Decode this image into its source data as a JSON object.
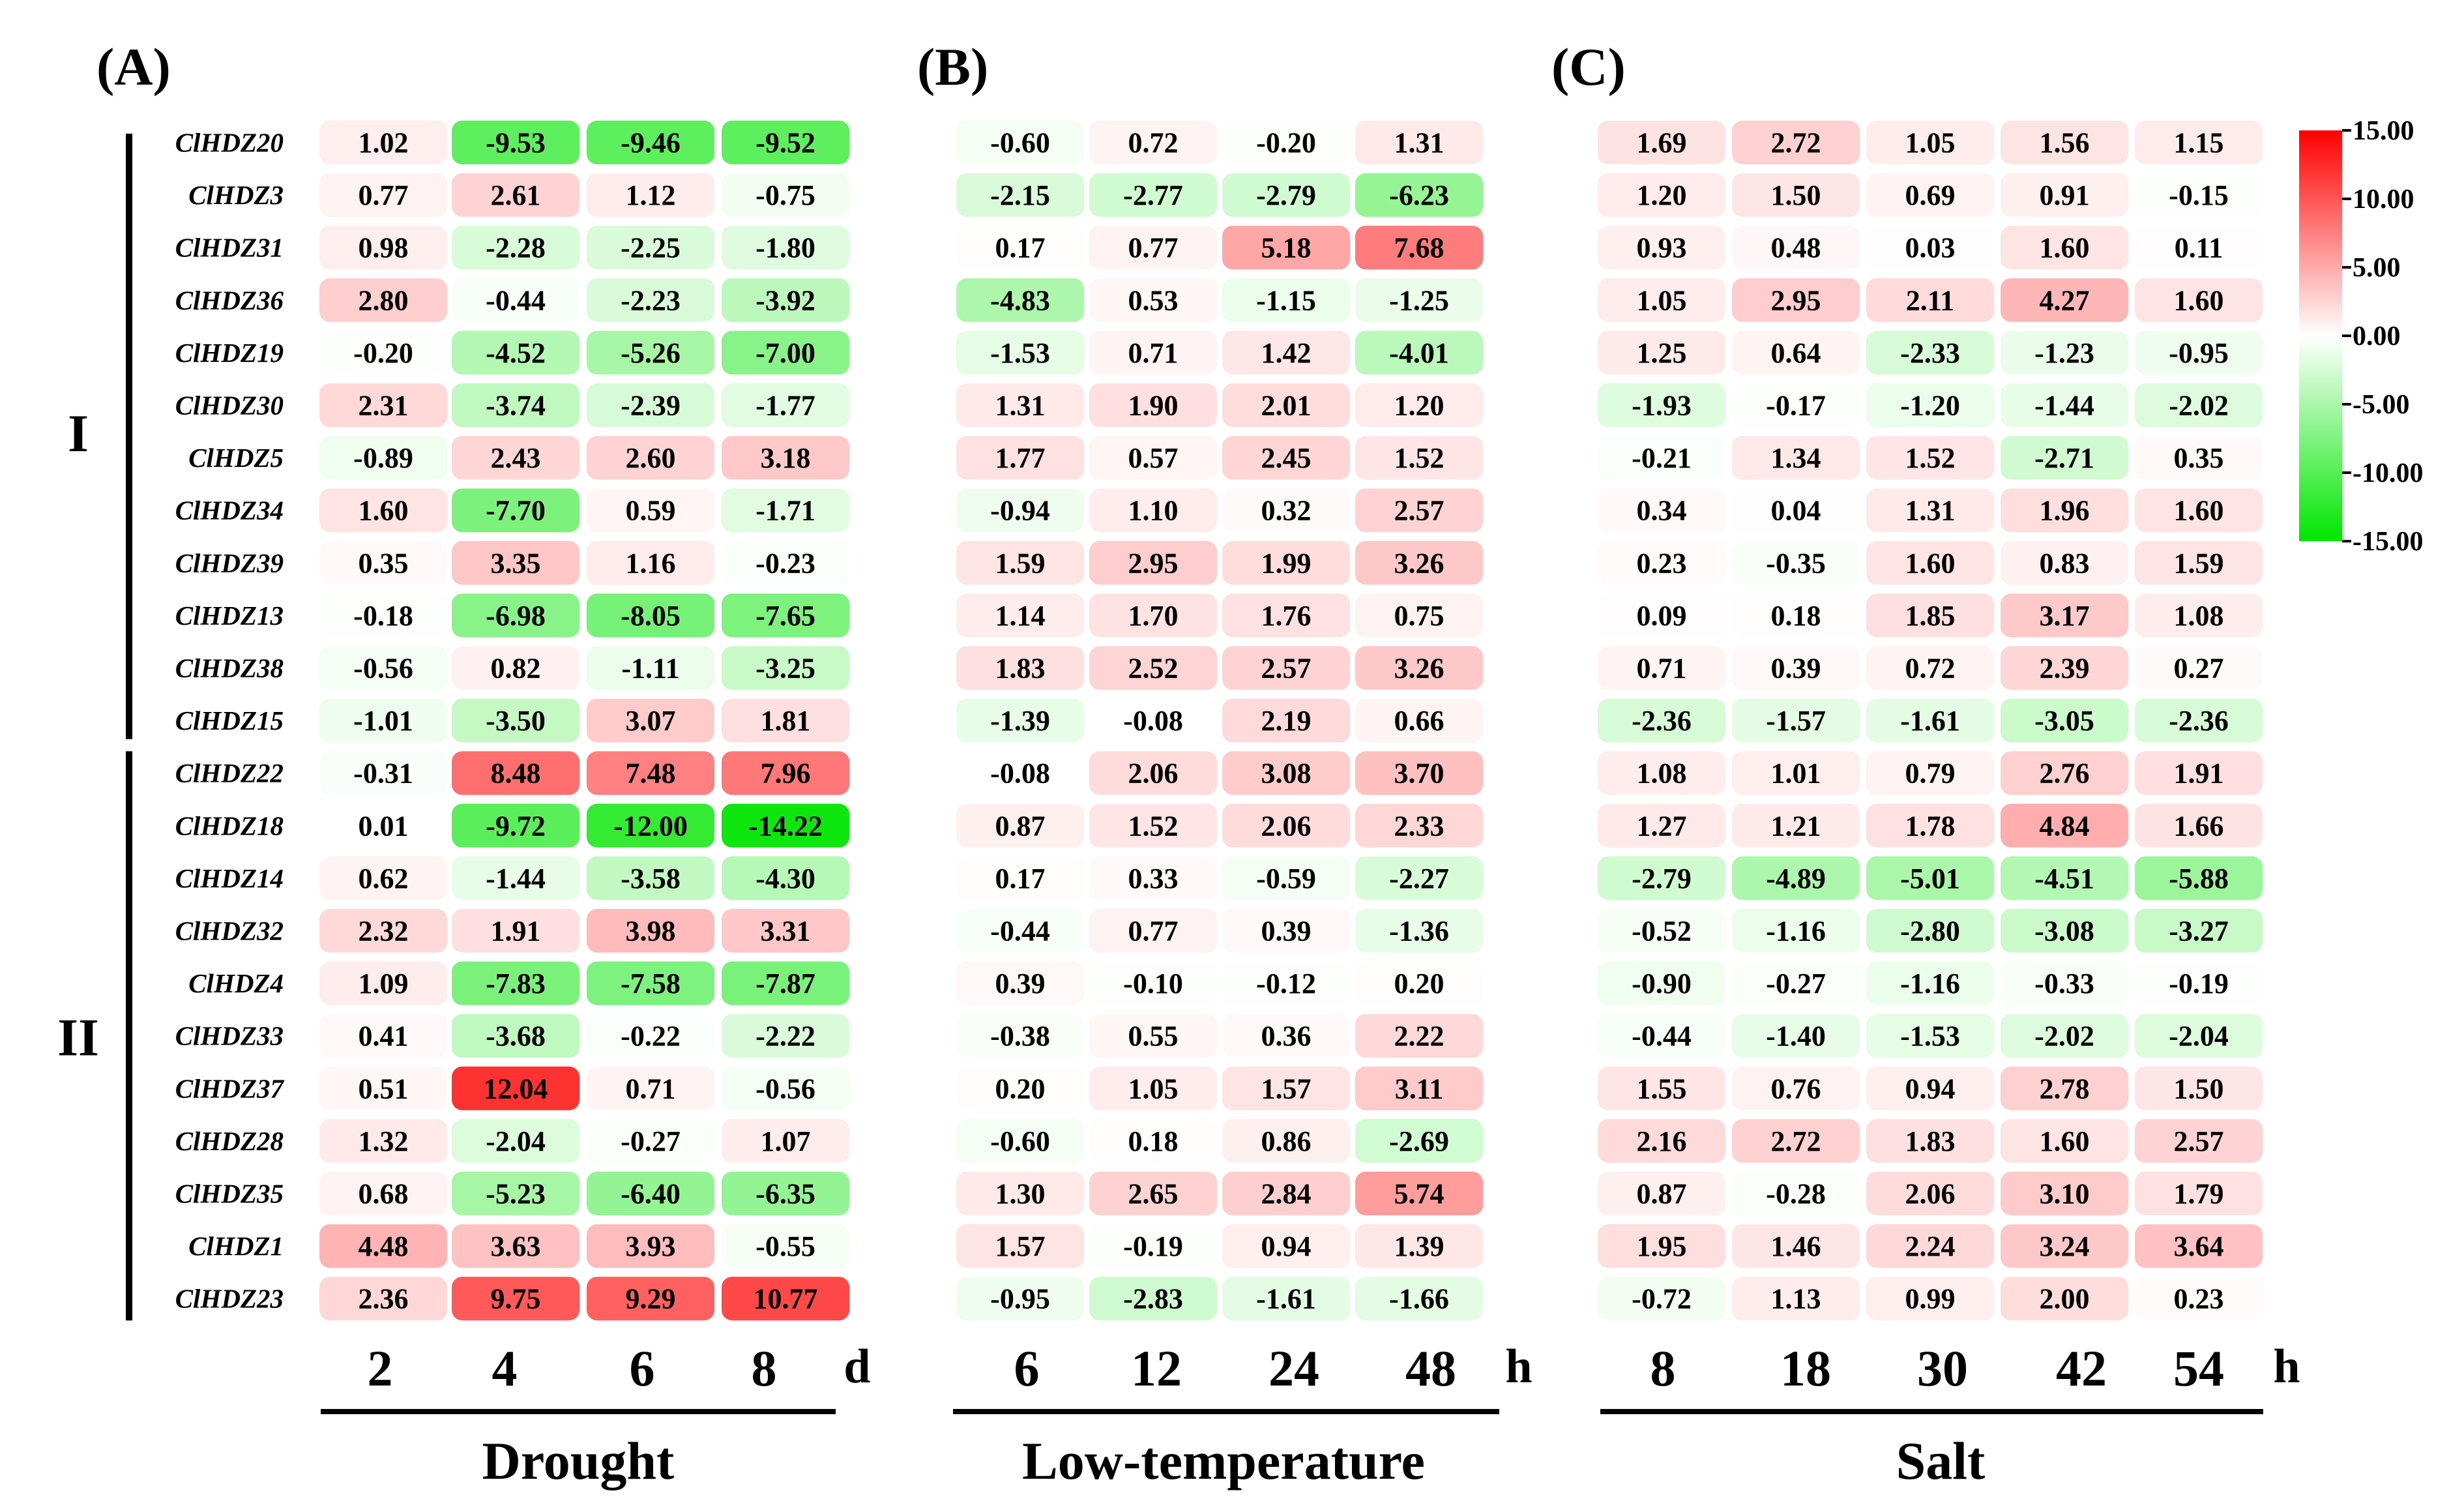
{
  "chart_data": {
    "type": "heatmap",
    "genes": [
      "ClHDZ20",
      "ClHDZ3",
      "ClHDZ31",
      "ClHDZ36",
      "ClHDZ19",
      "ClHDZ30",
      "ClHDZ5",
      "ClHDZ34",
      "ClHDZ39",
      "ClHDZ13",
      "ClHDZ38",
      "ClHDZ15",
      "ClHDZ22",
      "ClHDZ18",
      "ClHDZ14",
      "ClHDZ32",
      "ClHDZ4",
      "ClHDZ33",
      "ClHDZ37",
      "ClHDZ28",
      "ClHDZ35",
      "ClHDZ1",
      "ClHDZ23"
    ],
    "groups": [
      {
        "label": "I",
        "genes": [
          "ClHDZ20",
          "ClHDZ3",
          "ClHDZ31",
          "ClHDZ36",
          "ClHDZ19",
          "ClHDZ30",
          "ClHDZ5",
          "ClHDZ34",
          "ClHDZ39",
          "ClHDZ13",
          "ClHDZ38",
          "ClHDZ15"
        ]
      },
      {
        "label": "II",
        "genes": [
          "ClHDZ22",
          "ClHDZ18",
          "ClHDZ14",
          "ClHDZ32",
          "ClHDZ4",
          "ClHDZ33",
          "ClHDZ37",
          "ClHDZ28",
          "ClHDZ35",
          "ClHDZ1",
          "ClHDZ23"
        ]
      }
    ],
    "panels": [
      {
        "label": "(A)",
        "stress": "Drought",
        "unit": "d",
        "times": [
          "2",
          "4",
          "6",
          "8"
        ],
        "values": [
          [
            1.02,
            -9.53,
            -9.46,
            -9.52
          ],
          [
            0.77,
            2.61,
            1.12,
            -0.75
          ],
          [
            0.98,
            -2.28,
            -2.25,
            -1.8
          ],
          [
            2.8,
            -0.44,
            -2.23,
            -3.92
          ],
          [
            -0.2,
            -4.52,
            -5.26,
            -7.0
          ],
          [
            2.31,
            -3.74,
            -2.39,
            -1.77
          ],
          [
            -0.89,
            2.43,
            2.6,
            3.18
          ],
          [
            1.6,
            -7.7,
            0.59,
            -1.71
          ],
          [
            0.35,
            3.35,
            1.16,
            -0.23
          ],
          [
            -0.18,
            -6.98,
            -8.05,
            -7.65
          ],
          [
            -0.56,
            0.82,
            -1.11,
            -3.25
          ],
          [
            -1.01,
            -3.5,
            3.07,
            1.81
          ],
          [
            -0.31,
            8.48,
            7.48,
            7.96
          ],
          [
            0.01,
            -9.72,
            -12.0,
            -14.22
          ],
          [
            0.62,
            -1.44,
            -3.58,
            -4.3
          ],
          [
            2.32,
            1.91,
            3.98,
            3.31
          ],
          [
            1.09,
            -7.83,
            -7.58,
            -7.87
          ],
          [
            0.41,
            -3.68,
            -0.22,
            -2.22
          ],
          [
            0.51,
            12.04,
            0.71,
            -0.56
          ],
          [
            1.32,
            -2.04,
            -0.27,
            1.07
          ],
          [
            0.68,
            -5.23,
            -6.4,
            -6.35
          ],
          [
            4.48,
            3.63,
            3.93,
            -0.55
          ],
          [
            2.36,
            9.75,
            9.29,
            10.77
          ]
        ]
      },
      {
        "label": "(B)",
        "stress": "Low-temperature",
        "unit": "h",
        "times": [
          "6",
          "12",
          "24",
          "48"
        ],
        "values": [
          [
            -0.6,
            0.72,
            -0.2,
            1.31
          ],
          [
            -2.15,
            -2.77,
            -2.79,
            -6.23
          ],
          [
            0.17,
            0.77,
            5.18,
            7.68
          ],
          [
            -4.83,
            0.53,
            -1.15,
            -1.25
          ],
          [
            -1.53,
            0.71,
            1.42,
            -4.01
          ],
          [
            1.31,
            1.9,
            2.01,
            1.2
          ],
          [
            1.77,
            0.57,
            2.45,
            1.52
          ],
          [
            -0.94,
            1.1,
            0.32,
            2.57
          ],
          [
            1.59,
            2.95,
            1.99,
            3.26
          ],
          [
            1.14,
            1.7,
            1.76,
            0.75
          ],
          [
            1.83,
            2.52,
            2.57,
            3.26
          ],
          [
            -1.39,
            -0.08,
            2.19,
            0.66
          ],
          [
            -0.08,
            2.06,
            3.08,
            3.7
          ],
          [
            0.87,
            1.52,
            2.06,
            2.33
          ],
          [
            0.17,
            0.33,
            -0.59,
            -2.27
          ],
          [
            -0.44,
            0.77,
            0.39,
            -1.36
          ],
          [
            0.39,
            -0.1,
            -0.12,
            0.2
          ],
          [
            -0.38,
            0.55,
            0.36,
            2.22
          ],
          [
            0.2,
            1.05,
            1.57,
            3.11
          ],
          [
            -0.6,
            0.18,
            0.86,
            -2.69
          ],
          [
            1.3,
            2.65,
            2.84,
            5.74
          ],
          [
            1.57,
            -0.19,
            0.94,
            1.39
          ],
          [
            -0.95,
            -2.83,
            -1.61,
            -1.66
          ]
        ]
      },
      {
        "label": "(C)",
        "stress": "Salt",
        "unit": "h",
        "times": [
          "8",
          "18",
          "30",
          "42",
          "54"
        ],
        "values": [
          [
            1.69,
            2.72,
            1.05,
            1.56,
            1.15
          ],
          [
            1.2,
            1.5,
            0.69,
            0.91,
            -0.15
          ],
          [
            0.93,
            0.48,
            0.03,
            1.6,
            0.11
          ],
          [
            1.05,
            2.95,
            2.11,
            4.27,
            1.6
          ],
          [
            1.25,
            0.64,
            -2.33,
            -1.23,
            -0.95
          ],
          [
            -1.93,
            -0.17,
            -1.2,
            -1.44,
            -2.02
          ],
          [
            -0.21,
            1.34,
            1.52,
            -2.71,
            0.35
          ],
          [
            0.34,
            0.04,
            1.31,
            1.96,
            1.6
          ],
          [
            0.23,
            -0.35,
            1.6,
            0.83,
            1.59
          ],
          [
            0.09,
            0.18,
            1.85,
            3.17,
            1.08
          ],
          [
            0.71,
            0.39,
            0.72,
            2.39,
            0.27
          ],
          [
            -2.36,
            -1.57,
            -1.61,
            -3.05,
            -2.36
          ],
          [
            1.08,
            1.01,
            0.79,
            2.76,
            1.91
          ],
          [
            1.27,
            1.21,
            1.78,
            4.84,
            1.66
          ],
          [
            -2.79,
            -4.89,
            -5.01,
            -4.51,
            -5.88
          ],
          [
            -0.52,
            -1.16,
            -2.8,
            -3.08,
            -3.27
          ],
          [
            -0.9,
            -0.27,
            -1.16,
            -0.33,
            -0.19
          ],
          [
            -0.44,
            -1.4,
            -1.53,
            -2.02,
            -2.04
          ],
          [
            1.55,
            0.76,
            0.94,
            2.78,
            1.5
          ],
          [
            2.16,
            2.72,
            1.83,
            1.6,
            2.57
          ],
          [
            0.87,
            -0.28,
            2.06,
            3.1,
            1.79
          ],
          [
            1.95,
            1.46,
            2.24,
            3.24,
            3.64
          ],
          [
            -0.72,
            1.13,
            0.99,
            2.0,
            0.23
          ]
        ]
      }
    ],
    "colorbar": {
      "min": -15,
      "max": 15,
      "ticks": [
        "15.00",
        "10.00",
        "5.00",
        "0.00",
        "-5.00",
        "-10.00",
        "-15.00"
      ],
      "colors": {
        "high": "#ff0000",
        "mid": "#ffffff",
        "low": "#00e600"
      }
    }
  }
}
